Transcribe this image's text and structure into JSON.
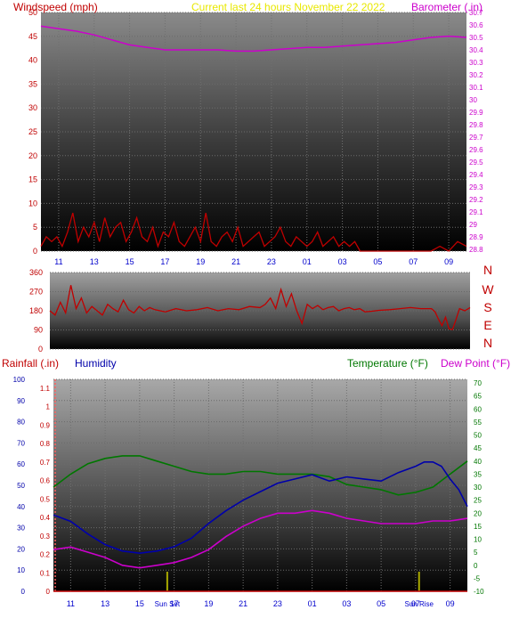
{
  "title": "Current last 24 hours November 22 2022",
  "colors": {
    "title": "#e8e800",
    "wind": "#c00000",
    "baro": "#cc00cc",
    "dir": "#c00000",
    "rain": "#c00000",
    "humidity": "#0000aa",
    "temperature": "#007700",
    "dewpoint": "#cc00cc",
    "tick_blue": "#0000cc",
    "sun": "#aaaa00"
  },
  "time_labels": [
    "11",
    "13",
    "15",
    "17",
    "19",
    "21",
    "23",
    "01",
    "03",
    "05",
    "07",
    "09"
  ],
  "chart_data": [
    {
      "type": "line",
      "name": "wind-baro",
      "left_axis_label": "Windspeed (mph)",
      "right_axis_label": "Barometer (.in)",
      "left_ticks": [
        "0",
        "5",
        "10",
        "15",
        "20",
        "25",
        "30",
        "35",
        "40",
        "45",
        "50"
      ],
      "left_ylim": [
        0,
        50
      ],
      "right_ticks": [
        "28.8",
        "28.9",
        "29",
        "29.1",
        "29.2",
        "29.3",
        "29.4",
        "29.5",
        "29.6",
        "29.7",
        "29.8",
        "29.9",
        "30",
        "30.1",
        "30.2",
        "30.3",
        "30.4",
        "30.5",
        "30.6",
        "30.7"
      ],
      "right_ylim": [
        28.8,
        30.7
      ],
      "x_hours": [
        0,
        24
      ],
      "series": [
        {
          "axis": "right",
          "x": [
            0,
            1,
            2,
            3,
            4,
            5,
            6,
            7,
            8,
            9,
            10,
            11,
            12,
            13,
            14,
            15,
            16,
            17,
            18,
            19,
            20,
            21,
            22,
            23,
            24
          ],
          "values": [
            30.59,
            30.57,
            30.55,
            30.52,
            30.48,
            30.44,
            30.42,
            30.4,
            30.4,
            30.4,
            30.4,
            30.39,
            30.39,
            30.4,
            30.41,
            30.42,
            30.42,
            30.43,
            30.44,
            30.45,
            30.46,
            30.48,
            30.5,
            30.51,
            30.5
          ]
        },
        {
          "axis": "left",
          "x": [
            0,
            0.3,
            0.6,
            0.9,
            1.2,
            1.5,
            1.8,
            2.1,
            2.4,
            2.7,
            3.0,
            3.3,
            3.6,
            3.9,
            4.2,
            4.5,
            4.8,
            5.1,
            5.4,
            5.7,
            6.0,
            6.3,
            6.6,
            6.9,
            7.2,
            7.5,
            7.8,
            8.1,
            8.4,
            8.7,
            9.0,
            9.3,
            9.6,
            9.9,
            10.2,
            10.5,
            10.8,
            11.1,
            11.4,
            11.7,
            12.0,
            12.3,
            12.6,
            12.9,
            13.2,
            13.5,
            13.8,
            14.1,
            14.4,
            14.7,
            15.0,
            15.3,
            15.6,
            15.9,
            16.2,
            16.5,
            16.8,
            17.1,
            17.4,
            17.7,
            18.0,
            20.0,
            22.0,
            22.5,
            23.0,
            23.5,
            24.0
          ],
          "values": [
            1,
            3,
            2,
            3,
            1,
            4,
            8,
            2,
            5,
            3,
            6,
            2,
            7,
            3,
            5,
            6,
            2,
            4,
            7,
            3,
            2,
            5,
            1,
            4,
            3,
            6,
            2,
            1,
            3,
            5,
            2,
            8,
            2,
            1,
            3,
            4,
            2,
            5,
            1,
            2,
            3,
            4,
            1,
            2,
            3,
            5,
            2,
            1,
            3,
            2,
            1,
            2,
            4,
            1,
            2,
            3,
            1,
            2,
            1,
            2,
            0,
            0,
            0,
            1,
            0,
            2,
            1
          ]
        }
      ]
    },
    {
      "type": "line",
      "name": "wind-direction",
      "left_ticks": [
        "0",
        "90",
        "180",
        "270",
        "360"
      ],
      "ylim": [
        0,
        360
      ],
      "right_labels": [
        "N",
        "W",
        "S",
        "E",
        "N"
      ],
      "x_hours": [
        0,
        24
      ],
      "series": [
        {
          "x": [
            0,
            0.3,
            0.6,
            0.9,
            1.2,
            1.5,
            1.8,
            2.1,
            2.4,
            2.7,
            3.0,
            3.3,
            3.6,
            3.9,
            4.2,
            4.5,
            4.8,
            5.1,
            5.4,
            5.7,
            6.0,
            6.6,
            7.2,
            7.8,
            8.4,
            9.0,
            9.6,
            10.2,
            10.8,
            11.4,
            12.0,
            12.3,
            12.6,
            12.9,
            13.2,
            13.5,
            13.8,
            14.1,
            14.4,
            14.7,
            15.0,
            15.3,
            15.6,
            15.9,
            16.2,
            16.5,
            16.8,
            17.1,
            17.4,
            17.7,
            18.0,
            18.4,
            18.8,
            19.4,
            20.0,
            20.6,
            21.2,
            21.8,
            22.0,
            22.2,
            22.4,
            22.6,
            22.8,
            23.0,
            23.2,
            23.4,
            23.7,
            24.0
          ],
          "values": [
            180,
            160,
            220,
            170,
            300,
            190,
            240,
            170,
            200,
            180,
            160,
            210,
            190,
            175,
            230,
            185,
            170,
            200,
            180,
            195,
            185,
            175,
            190,
            180,
            185,
            195,
            180,
            190,
            185,
            200,
            195,
            210,
            240,
            190,
            280,
            200,
            260,
            180,
            120,
            210,
            190,
            205,
            185,
            195,
            200,
            180,
            190,
            195,
            185,
            190,
            175,
            178,
            182,
            185,
            190,
            195,
            190,
            190,
            175,
            140,
            110,
            150,
            95,
            92,
            140,
            190,
            180,
            195
          ]
        }
      ]
    },
    {
      "type": "line",
      "name": "rain-humidity-temp",
      "left_axis1_label": "Rainfall (.in)",
      "left_axis2_label": "Humidity",
      "right_axis_label1": "Temperature (°F)",
      "right_axis_label2": "Dew Point (°F)",
      "humidity_ticks": [
        "0",
        "10",
        "20",
        "30",
        "40",
        "50",
        "60",
        "70",
        "80",
        "90",
        "100"
      ],
      "humidity_ylim": [
        0,
        100
      ],
      "rain_ticks": [
        "0",
        "0.1",
        "0.2",
        "0.3",
        "0.4",
        "0.5",
        "0.6",
        "0.7",
        "0.8",
        "0.9",
        "1",
        "1.1"
      ],
      "rain_ylim": [
        0,
        1.1
      ],
      "temp_ticks": [
        "-10",
        "-5",
        "0",
        "5",
        "10",
        "15",
        "20",
        "25",
        "30",
        "35",
        "40",
        "45",
        "50",
        "55",
        "60",
        "65",
        "70"
      ],
      "temp_ylim": [
        -10,
        70
      ],
      "x_hours": [
        0,
        24
      ],
      "sun_labels": [
        "Sun Set",
        "Sun Rise"
      ],
      "sun_hours": [
        6.6,
        21.2
      ],
      "series": [
        {
          "name": "Temperature (°F)",
          "axis": "temp",
          "x": [
            0,
            1,
            2,
            3,
            4,
            5,
            6,
            7,
            8,
            9,
            10,
            11,
            12,
            13,
            14,
            15,
            16,
            17,
            18,
            19,
            19.5,
            20,
            21,
            22,
            23,
            24
          ],
          "values": [
            30,
            35,
            39,
            41,
            42,
            42,
            40,
            38,
            36,
            35,
            35,
            36,
            36,
            35,
            35,
            35,
            34,
            31,
            30,
            29,
            28,
            27,
            28,
            30,
            35,
            40
          ]
        },
        {
          "name": "Humidity",
          "axis": "humidity",
          "x": [
            0,
            1,
            2,
            3,
            4,
            5,
            6,
            7,
            8,
            9,
            10,
            11,
            12,
            13,
            14,
            15,
            16,
            17,
            18,
            19,
            20,
            21,
            21.5,
            22,
            22.5,
            23,
            23.5,
            24
          ],
          "values": [
            36,
            33,
            27,
            22,
            19,
            18,
            19,
            21,
            25,
            32,
            38,
            43,
            47,
            51,
            53,
            55,
            52,
            54,
            53,
            52,
            56,
            59,
            61,
            61,
            59,
            53,
            48,
            40
          ]
        },
        {
          "name": "Dew Point (°F)",
          "axis": "temp",
          "x": [
            0,
            1,
            2,
            3,
            4,
            5,
            6,
            7,
            8,
            9,
            10,
            11,
            12,
            13,
            14,
            15,
            16,
            17,
            18,
            19,
            20,
            21,
            22,
            23,
            24
          ],
          "values": [
            6,
            7,
            5,
            3,
            0,
            -1,
            0,
            1,
            3,
            6,
            11,
            15,
            18,
            20,
            20,
            21,
            20,
            18,
            17,
            16,
            16,
            16,
            17,
            17,
            18
          ]
        },
        {
          "name": "Rainfall (.in)",
          "axis": "rain",
          "x": [
            0,
            24
          ],
          "values": [
            0,
            0
          ]
        }
      ]
    }
  ]
}
